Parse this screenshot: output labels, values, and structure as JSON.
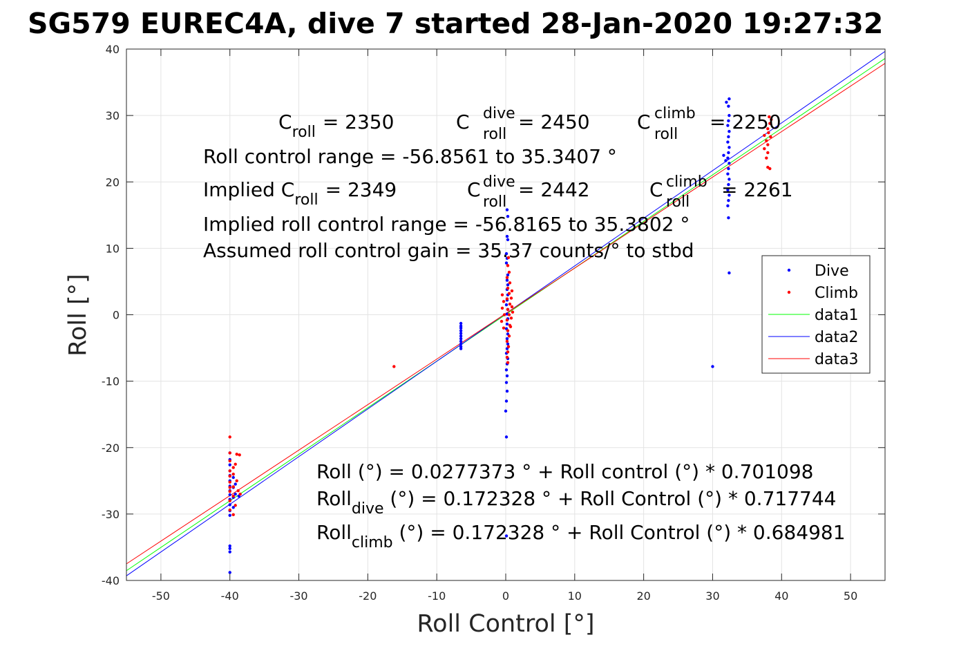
{
  "chart_data": {
    "type": "scatter",
    "title": "SG579 EUREC4A, dive 7 started 28-Jan-2020 19:27:32",
    "xlabel": "Roll Control [°]",
    "ylabel": "Roll [°]",
    "xlim": [
      -55,
      55
    ],
    "ylim": [
      -40,
      40
    ],
    "xticks": [
      -50,
      -40,
      -30,
      -20,
      -10,
      0,
      10,
      20,
      30,
      40,
      50
    ],
    "yticks": [
      -40,
      -30,
      -20,
      -10,
      0,
      10,
      20,
      30,
      40
    ],
    "grid": true,
    "legend_position": "right",
    "series": [
      {
        "name": "Dive",
        "kind": "points",
        "color": "#0000ff",
        "points": [
          [
            -40,
            -38.8
          ],
          [
            -40,
            -35.7
          ],
          [
            -40,
            -35.2
          ],
          [
            -40,
            -34.8
          ],
          [
            -40,
            -30.2
          ],
          [
            -40,
            -29.5
          ],
          [
            -40,
            -28.6
          ],
          [
            -40,
            -27.8
          ],
          [
            -40,
            -27.1
          ],
          [
            -40,
            -26.5
          ],
          [
            -40,
            -25.8
          ],
          [
            -40,
            -25.0
          ],
          [
            -40,
            -24.2
          ],
          [
            -40,
            -23.5
          ],
          [
            -40,
            -22.6
          ],
          [
            -40,
            -21.8
          ],
          [
            -40,
            -20.8
          ],
          [
            -39.5,
            -29.0
          ],
          [
            -39.5,
            -27.5
          ],
          [
            -39.5,
            -26.0
          ],
          [
            -39.5,
            -24.5
          ],
          [
            -39.2,
            -27.0
          ],
          [
            -39.2,
            -25.5
          ],
          [
            -38.7,
            -27.3
          ],
          [
            -6.5,
            -1.3
          ],
          [
            -6.5,
            -1.7
          ],
          [
            -6.5,
            -2.0
          ],
          [
            -6.5,
            -2.4
          ],
          [
            -6.5,
            -2.8
          ],
          [
            -6.5,
            -3.2
          ],
          [
            -6.5,
            -3.6
          ],
          [
            -6.5,
            -4.0
          ],
          [
            -6.5,
            -4.4
          ],
          [
            -6.5,
            -4.8
          ],
          [
            -6.5,
            -5.1
          ],
          [
            0.2,
            15.8
          ],
          [
            0.3,
            14.8
          ],
          [
            0.2,
            11.8
          ],
          [
            0.3,
            11.3
          ],
          [
            0.1,
            9.2
          ],
          [
            0.2,
            8.5
          ],
          [
            0.1,
            7.8
          ],
          [
            0.3,
            6.0
          ],
          [
            0.2,
            5.2
          ],
          [
            0.3,
            4.5
          ],
          [
            0.2,
            3.8
          ],
          [
            0.3,
            3.0
          ],
          [
            0.2,
            2.2
          ],
          [
            0.1,
            1.5
          ],
          [
            0.3,
            0.8
          ],
          [
            0.2,
            0.1
          ],
          [
            0.3,
            -0.6
          ],
          [
            0.2,
            -1.4
          ],
          [
            0.1,
            -2.1
          ],
          [
            0.3,
            -2.9
          ],
          [
            0.2,
            -3.6
          ],
          [
            0.3,
            -4.4
          ],
          [
            0.2,
            -5.1
          ],
          [
            0.1,
            -5.8
          ],
          [
            0.3,
            -6.6
          ],
          [
            0.2,
            -7.4
          ],
          [
            0.1,
            -8.3
          ],
          [
            0.2,
            -9.2
          ],
          [
            0.1,
            -10.2
          ],
          [
            0.2,
            -11.5
          ],
          [
            0.1,
            -13.0
          ],
          [
            0.0,
            -14.5
          ],
          [
            0.1,
            -18.4
          ],
          [
            0.1,
            -33.3
          ],
          [
            30.0,
            -7.8
          ],
          [
            32.0,
            32.0
          ],
          [
            32.3,
            31.4
          ],
          [
            32.4,
            32.5
          ],
          [
            32.4,
            30.0
          ],
          [
            32.3,
            29.2
          ],
          [
            32.2,
            28.5
          ],
          [
            32.4,
            27.6
          ],
          [
            32.3,
            26.8
          ],
          [
            32.2,
            26.0
          ],
          [
            32.4,
            25.2
          ],
          [
            32.3,
            24.4
          ],
          [
            32.2,
            23.6
          ],
          [
            32.4,
            22.8
          ],
          [
            32.3,
            22.0
          ],
          [
            32.2,
            21.2
          ],
          [
            32.4,
            20.4
          ],
          [
            32.3,
            19.6
          ],
          [
            32.2,
            18.8
          ],
          [
            32.4,
            18.0
          ],
          [
            32.3,
            17.2
          ],
          [
            32.2,
            16.4
          ],
          [
            32.3,
            14.6
          ],
          [
            32.4,
            6.3
          ],
          [
            31.6,
            24.0
          ],
          [
            31.9,
            23.2
          ]
        ]
      },
      {
        "name": "Climb",
        "kind": "points",
        "color": "#ff0000",
        "points": [
          [
            -40,
            -18.4
          ],
          [
            -40,
            -20.8
          ],
          [
            -40,
            -22.0
          ],
          [
            -39.5,
            -23.0
          ],
          [
            -39.0,
            -21.0
          ],
          [
            -38.6,
            -21.1
          ],
          [
            -40,
            -24.3
          ],
          [
            -40,
            -25.2
          ],
          [
            -39.5,
            -25.9
          ],
          [
            -40,
            -26.6
          ],
          [
            -39.5,
            -27.3
          ],
          [
            -40,
            -28.0
          ],
          [
            -39.2,
            -28.7
          ],
          [
            -40,
            -29.4
          ],
          [
            -39.5,
            -30.1
          ],
          [
            -40,
            -26.0
          ],
          [
            -38.8,
            -26.5
          ],
          [
            -38.5,
            -27.0
          ],
          [
            -39.0,
            -25.0
          ],
          [
            -39.5,
            -24.0
          ],
          [
            -40,
            -23.5
          ],
          [
            -39.2,
            -22.5
          ],
          [
            -16.2,
            -7.8
          ],
          [
            0.4,
            8.6
          ],
          [
            0.3,
            7.4
          ],
          [
            0.5,
            6.4
          ],
          [
            0.2,
            5.6
          ],
          [
            0.6,
            4.8
          ],
          [
            0.3,
            4.0
          ],
          [
            0.5,
            3.2
          ],
          [
            0.2,
            2.4
          ],
          [
            0.6,
            1.6
          ],
          [
            0.3,
            0.8
          ],
          [
            0.5,
            0.0
          ],
          [
            0.2,
            -0.8
          ],
          [
            0.6,
            -1.6
          ],
          [
            0.3,
            -2.4
          ],
          [
            0.5,
            -3.2
          ],
          [
            0.2,
            -4.0
          ],
          [
            0.4,
            -4.8
          ],
          [
            0.3,
            -5.6
          ],
          [
            0.2,
            -6.4
          ],
          [
            0.3,
            -7.2
          ],
          [
            -0.3,
            2.0
          ],
          [
            -0.5,
            1.0
          ],
          [
            -0.2,
            0.0
          ],
          [
            -0.6,
            -1.0
          ],
          [
            -0.3,
            -2.0
          ],
          [
            -0.5,
            3.0
          ],
          [
            0.8,
            2.5
          ],
          [
            0.9,
            1.2
          ],
          [
            0.8,
            -0.5
          ],
          [
            0.7,
            -1.8
          ],
          [
            0.9,
            3.6
          ],
          [
            1.0,
            0.4
          ],
          [
            37.5,
            27.0
          ],
          [
            37.5,
            25.0
          ],
          [
            37.8,
            26.2
          ],
          [
            38.0,
            25.6
          ],
          [
            38.0,
            24.4
          ],
          [
            37.8,
            23.6
          ],
          [
            38.3,
            22.0
          ],
          [
            38.0,
            22.2
          ],
          [
            38.1,
            27.4
          ],
          [
            38.3,
            28.8
          ],
          [
            38.5,
            29.4
          ],
          [
            38.0,
            28.0
          ],
          [
            38.4,
            26.8
          ],
          [
            38.2,
            29.8
          ]
        ]
      },
      {
        "name": "data1",
        "kind": "line",
        "color": "#00ff00",
        "intercept": 0.0277373,
        "slope": 0.701098,
        "x": [
          -55,
          55
        ]
      },
      {
        "name": "data2",
        "kind": "line",
        "color": "#0000ff",
        "intercept": 0.172328,
        "slope": 0.717744,
        "x": [
          -55,
          55
        ]
      },
      {
        "name": "data3",
        "kind": "line",
        "color": "#ff0000",
        "intercept": 0.172328,
        "slope": 0.684981,
        "x": [
          -55,
          55
        ]
      }
    ],
    "annotations": {
      "c_roll_label": "C",
      "c_roll_sub": "roll",
      "c_roll_value": "= 2350",
      "c_dive_label": "C",
      "c_dive_sup": "dive",
      "c_dive_sub": "roll",
      "c_dive_value": "= 2450",
      "c_climb_label": "C",
      "c_climb_sup": "climb",
      "c_climb_sub": "roll",
      "c_climb_value": "= 2250",
      "roll_range": "Roll control range = -56.8561 to 35.3407 °",
      "implied_label": "Implied C",
      "implied_sub": "roll",
      "implied_value": "= 2349",
      "implied_dive_label": "C",
      "implied_dive_sup": "dive",
      "implied_dive_sub": "roll",
      "implied_dive_value": "= 2442",
      "implied_climb_label": "C",
      "implied_climb_sup": "climb",
      "implied_climb_sub": "roll",
      "implied_climb_value": "= 2261",
      "implied_range": "Implied roll control range = -56.8165 to 35.3802 °",
      "gain": "Assumed roll control gain = 35.37 counts/° to stbd",
      "fit_all": "Roll (°) = 0.0277373 ° + Roll control (°) * 0.701098",
      "fit_dive_label": "Roll",
      "fit_dive_sub": "dive",
      "fit_dive_rest": " (°) = 0.172328 ° + Roll Control (°) * 0.717744",
      "fit_climb_label": "Roll",
      "fit_climb_sub": "climb",
      "fit_climb_rest": " (°) = 0.172328 ° + Roll Control (°) * 0.684981"
    }
  }
}
